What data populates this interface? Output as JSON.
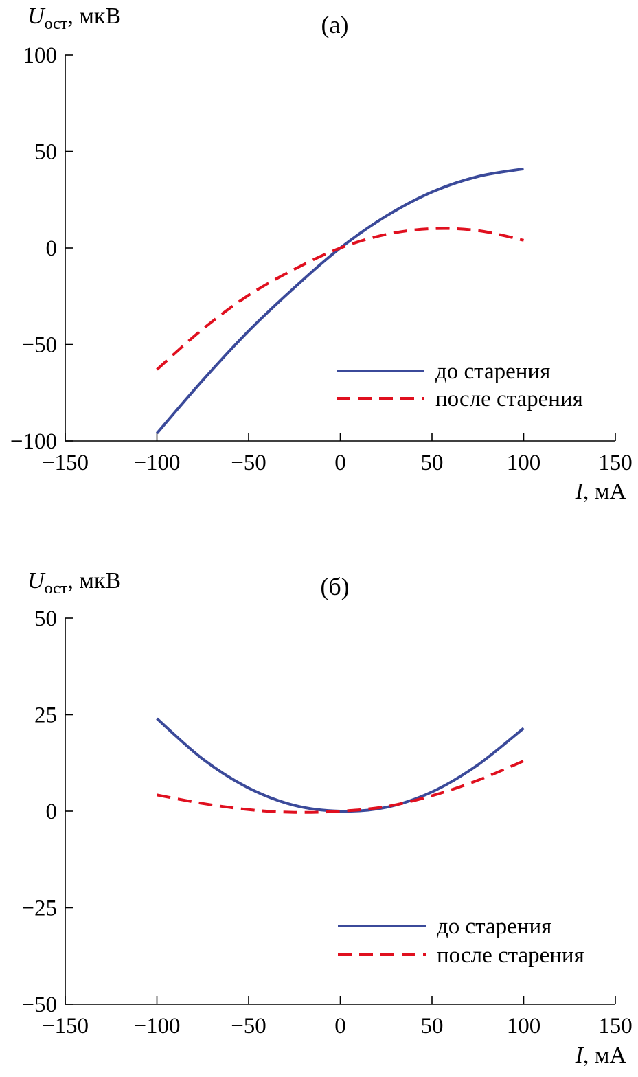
{
  "chart_data": [
    {
      "type": "line",
      "panel_label": "(a)",
      "title": "",
      "xlabel": {
        "var": "I",
        "unit": ", мА"
      },
      "ylabel": {
        "var": "U",
        "sub": "ост",
        "unit": ", мкВ"
      },
      "xlim": [
        -150,
        150
      ],
      "ylim": [
        -100,
        100
      ],
      "xticks": [
        -150,
        -100,
        -50,
        0,
        50,
        100,
        150
      ],
      "xtick_labels": [
        "−150",
        "−100",
        "−50",
        "0",
        "50",
        "100",
        "150"
      ],
      "yticks": [
        -100,
        -50,
        0,
        50,
        100
      ],
      "ytick_labels": [
        "−100",
        "−50",
        "0",
        "50",
        "100"
      ],
      "grid": false,
      "legend_position": "lower-right",
      "series": [
        {
          "name": "до старения",
          "style": "solid",
          "color": "#3b4a9a",
          "x": [
            -100,
            -75,
            -50,
            -25,
            0,
            25,
            50,
            75,
            100
          ],
          "y": [
            -96,
            -68.5,
            -43,
            -20.5,
            0,
            16.5,
            29,
            37,
            41
          ]
        },
        {
          "name": "после старения",
          "style": "dashed",
          "color": "#e0101f",
          "x": [
            -100,
            -75,
            -50,
            -25,
            0,
            25,
            50,
            75,
            100
          ],
          "y": [
            -63,
            -42,
            -24.5,
            -11,
            0,
            7,
            10,
            9,
            4
          ]
        }
      ]
    },
    {
      "type": "line",
      "panel_label": "(б)",
      "title": "",
      "xlabel": {
        "var": "I",
        "unit": ", мА"
      },
      "ylabel": {
        "var": "U",
        "sub": "ост",
        "unit": ", мкВ"
      },
      "xlim": [
        -150,
        150
      ],
      "ylim": [
        -50,
        50
      ],
      "xticks": [
        -150,
        -100,
        -50,
        0,
        50,
        100,
        150
      ],
      "xtick_labels": [
        "−150",
        "−100",
        "−50",
        "0",
        "50",
        "100",
        "150"
      ],
      "yticks": [
        -50,
        -25,
        0,
        25,
        50
      ],
      "ytick_labels": [
        "−50",
        "−25",
        "0",
        "25",
        "50"
      ],
      "grid": false,
      "legend_position": "lower-right",
      "series": [
        {
          "name": "до старения",
          "style": "solid",
          "color": "#3b4a9a",
          "x": [
            -100,
            -75,
            -50,
            -25,
            0,
            25,
            50,
            75,
            100
          ],
          "y": [
            24,
            13.5,
            6,
            1.5,
            0,
            1,
            5,
            12,
            21.5
          ]
        },
        {
          "name": "после старения",
          "style": "dashed",
          "color": "#e0101f",
          "x": [
            -100,
            -75,
            -50,
            -25,
            0,
            25,
            50,
            75,
            100
          ],
          "y": [
            4.2,
            2,
            0.4,
            -0.3,
            0,
            1.2,
            4,
            8,
            13
          ]
        }
      ]
    }
  ]
}
